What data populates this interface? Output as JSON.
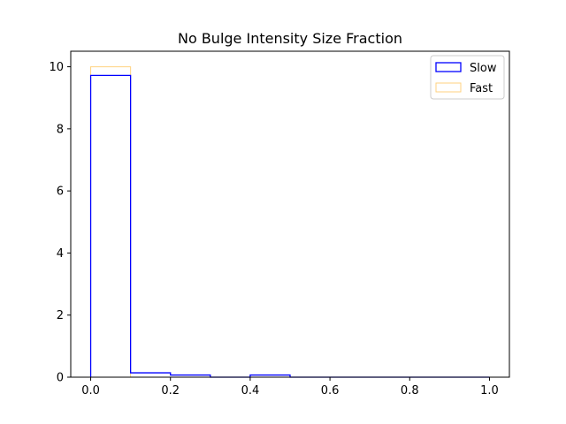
{
  "chart_data": {
    "type": "histogram",
    "title": "No Bulge Intensity Size Fraction",
    "xlabel": "",
    "ylabel": "",
    "xlim": [
      -0.05,
      1.05
    ],
    "ylim": [
      0,
      10.5
    ],
    "xticks": [
      0.0,
      0.2,
      0.4,
      0.6,
      0.8,
      1.0
    ],
    "xtick_labels": [
      "0.0",
      "0.2",
      "0.4",
      "0.6",
      "0.8",
      "1.0"
    ],
    "yticks": [
      0,
      2,
      4,
      6,
      8,
      10
    ],
    "ytick_labels": [
      "0",
      "2",
      "4",
      "6",
      "8",
      "10"
    ],
    "bin_edges": [
      0.0,
      0.1,
      0.2,
      0.3,
      0.4,
      0.5,
      0.6,
      0.7,
      0.8,
      0.9,
      1.0
    ],
    "histtype": "step",
    "grid": false,
    "legend_position": "top-right",
    "series": [
      {
        "name": "Slow",
        "color": "#0000ff",
        "values": [
          9.72,
          0.14,
          0.07,
          0.0,
          0.07,
          0.0,
          0.0,
          0.0,
          0.0,
          0.0
        ]
      },
      {
        "name": "Fast",
        "color": "#ffa500",
        "values": [
          10.0,
          0.0,
          0.0,
          0.0,
          0.0,
          0.0,
          0.0,
          0.0,
          0.0,
          0.0
        ]
      }
    ]
  }
}
